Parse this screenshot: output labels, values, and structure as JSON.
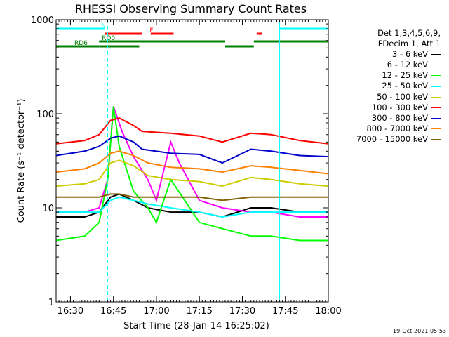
{
  "chart_data": {
    "type": "line",
    "title": "RHESSI Observing Summary Count Rates",
    "xlabel": "Start Time (28-Jan-14 16:25:02)",
    "ylabel": "Count Rate (s⁻¹ detector⁻¹)",
    "y_scale": "log",
    "ylim": [
      1,
      1000
    ],
    "xlim_minutes": [
      "16:25",
      "18:00"
    ],
    "x_ticks": [
      "16:30",
      "16:45",
      "17:00",
      "17:15",
      "17:30",
      "17:45",
      "18:00"
    ],
    "y_ticks": [
      "1",
      "10",
      "100",
      "1000"
    ],
    "legend_placement": "right, outside",
    "legend_header": [
      "Det 1,3,4,5,6,9,",
      "FDecim 1, Att 1"
    ],
    "series": [
      {
        "name": "3 - 6 keV",
        "color": "#000000",
        "x": [
          "16:25",
          "16:35",
          "16:40",
          "16:44",
          "16:47",
          "16:52",
          "16:57",
          "17:05",
          "17:15",
          "17:23",
          "17:33",
          "17:40",
          "17:50",
          "18:00"
        ],
        "y": [
          8,
          8,
          9,
          13,
          14,
          12,
          10,
          9,
          9,
          8,
          10,
          10,
          9,
          9
        ]
      },
      {
        "name": "6 - 12 keV",
        "color": "#ff00ff",
        "x": [
          "16:25",
          "16:35",
          "16:40",
          "16:43",
          "16:45",
          "16:48",
          "16:52",
          "16:57",
          "17:00",
          "17:05",
          "17:08",
          "17:15",
          "17:23",
          "17:33",
          "17:40",
          "17:50",
          "18:00"
        ],
        "y": [
          9,
          9,
          10,
          20,
          120,
          65,
          35,
          20,
          12,
          50,
          30,
          12,
          10,
          9,
          9,
          8,
          8
        ]
      },
      {
        "name": "12 - 25 keV",
        "color": "#00ff00",
        "x": [
          "16:25",
          "16:35",
          "16:40",
          "16:43",
          "16:45",
          "16:47",
          "16:52",
          "16:57",
          "17:00",
          "17:05",
          "17:15",
          "17:23",
          "17:33",
          "17:40",
          "17:50",
          "18:00"
        ],
        "y": [
          4.5,
          5,
          7,
          20,
          120,
          45,
          15,
          10,
          7,
          20,
          7,
          6,
          5,
          5,
          4.5,
          4.5
        ]
      },
      {
        "name": "25 - 50 keV",
        "color": "#00ffff",
        "x": [
          "16:25",
          "16:35",
          "16:40",
          "16:44",
          "16:47",
          "16:52",
          "16:57",
          "17:05",
          "17:15",
          "17:23",
          "17:33",
          "17:40",
          "17:50",
          "18:00"
        ],
        "y": [
          9,
          9,
          9,
          12,
          13,
          12,
          11,
          10,
          9,
          8,
          9,
          9,
          9,
          9
        ]
      },
      {
        "name": "50 - 100 keV",
        "color": "#cccc00",
        "x": [
          "16:25",
          "16:35",
          "16:40",
          "16:44",
          "16:47",
          "16:52",
          "16:57",
          "17:05",
          "17:15",
          "17:23",
          "17:33",
          "17:40",
          "17:50",
          "18:00"
        ],
        "y": [
          17,
          18,
          20,
          30,
          32,
          28,
          22,
          20,
          19,
          17,
          21,
          20,
          18,
          17
        ]
      },
      {
        "name": "100 - 300 keV",
        "color": "#ff0000",
        "x": [
          "16:25",
          "16:35",
          "16:40",
          "16:44",
          "16:47",
          "16:52",
          "16:55",
          "17:05",
          "17:15",
          "17:23",
          "17:33",
          "17:40",
          "17:50",
          "18:00"
        ],
        "y": [
          48,
          52,
          60,
          85,
          90,
          75,
          65,
          62,
          58,
          50,
          62,
          60,
          52,
          48
        ]
      },
      {
        "name": "300 - 800 keV",
        "color": "#0000cc",
        "x": [
          "16:25",
          "16:35",
          "16:40",
          "16:44",
          "16:47",
          "16:52",
          "16:55",
          "17:05",
          "17:15",
          "17:23",
          "17:33",
          "17:40",
          "17:50",
          "18:00"
        ],
        "y": [
          36,
          40,
          45,
          55,
          58,
          50,
          42,
          38,
          37,
          30,
          42,
          40,
          36,
          35
        ]
      },
      {
        "name": "800 - 7000 keV",
        "color": "#ff8000",
        "x": [
          "16:25",
          "16:35",
          "16:40",
          "16:44",
          "16:47",
          "16:52",
          "16:57",
          "17:05",
          "17:15",
          "17:23",
          "17:33",
          "17:40",
          "17:50",
          "18:00"
        ],
        "y": [
          24,
          26,
          30,
          38,
          40,
          36,
          30,
          27,
          26,
          24,
          28,
          27,
          25,
          23
        ]
      },
      {
        "name": "7000 - 15000 keV",
        "color": "#806000",
        "x": [
          "16:25",
          "16:35",
          "16:40",
          "16:44",
          "16:47",
          "16:52",
          "16:57",
          "17:05",
          "17:15",
          "17:23",
          "17:33",
          "17:40",
          "17:50",
          "18:00"
        ],
        "y": [
          13,
          13,
          13,
          14,
          14,
          13,
          13,
          13,
          13,
          12,
          13,
          13,
          13,
          13
        ]
      }
    ],
    "flag_bars": [
      {
        "label": "N",
        "color": "#00ffff",
        "segments": [
          [
            "16:25",
            "16:42"
          ],
          [
            "17:43",
            "18:00"
          ]
        ]
      },
      {
        "label": "F",
        "color": "#ff0000",
        "segments": [
          [
            "16:42",
            "16:43"
          ],
          [
            "16:43",
            "16:55"
          ],
          [
            "16:58",
            "17:06"
          ],
          [
            "17:35",
            "17:37"
          ]
        ]
      },
      {
        "label": "RD0",
        "color": "#008000",
        "segments": [
          [
            "16:40",
            "16:55"
          ],
          [
            "16:55",
            "17:24"
          ],
          [
            "17:34",
            "18:00"
          ]
        ]
      },
      {
        "label": "RD6",
        "color": "#008000",
        "segments": [
          [
            "16:25",
            "16:40"
          ],
          [
            "16:40",
            "16:54"
          ],
          [
            "17:24",
            "17:34"
          ]
        ]
      }
    ],
    "vertical_markers": [
      {
        "x": "16:43",
        "style": "dashed",
        "color": "#00ffff"
      },
      {
        "x": "17:43",
        "style": "solid",
        "color": "#00ffff"
      },
      {
        "x": "18:00",
        "style": "dashed",
        "color": "#00ffff"
      }
    ]
  },
  "timestamp": "19-Oct-2021 05:53"
}
